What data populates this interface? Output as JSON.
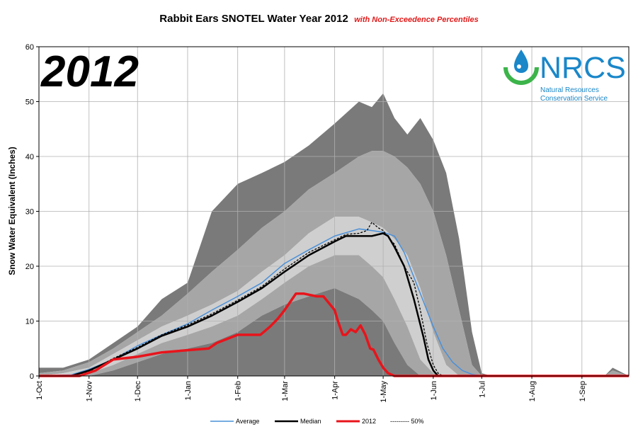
{
  "title": "Rabbit Ears SNOTEL Water Year 2012",
  "subtitle": "with Non-Exceedence Percentiles",
  "watermark_year": "2012",
  "logo": {
    "name": "NRCS",
    "line1": "Natural Resources",
    "line2": "Conservation Service",
    "colors": {
      "text": "#1a87c9",
      "drop": "#1a87c9",
      "arc": "#3cb44a"
    }
  },
  "colors": {
    "band_outer": "#7a7a7a",
    "band_mid": "#a6a6a6",
    "band_inner": "#cfcfcf",
    "average": "#4a90d9",
    "median": "#000000",
    "year2012": "#e8141b",
    "grid": "#b0b0b0"
  },
  "chart_data": {
    "type": "area",
    "ylabel": "Snow Water Equivalent (Inches)",
    "xlabel": "",
    "ylim": [
      0,
      60
    ],
    "yticks": [
      "0",
      "10",
      "20",
      "30",
      "40",
      "50",
      "60"
    ],
    "x_ticks": [
      "1-Oct",
      "1-Nov",
      "1-Dec",
      "1-Jan",
      "1-Feb",
      "1-Mar",
      "1-Apr",
      "1-May",
      "1-Jun",
      "1-Jul",
      "1-Aug",
      "1-Sep"
    ],
    "x_tick_days": [
      0,
      31,
      61,
      92,
      123,
      152,
      183,
      213,
      244,
      274,
      305,
      336
    ],
    "x_max_day": 365,
    "grid": true,
    "legend_position": "bottom",
    "legend": [
      "Average",
      "Median",
      "2012",
      "--------- 50%"
    ],
    "bands": {
      "days": [
        0,
        15,
        31,
        46,
        61,
        76,
        92,
        107,
        123,
        138,
        152,
        167,
        183,
        198,
        206,
        213,
        220,
        228,
        236,
        244,
        252,
        260,
        268,
        274,
        280,
        305,
        336,
        350,
        355,
        365
      ],
      "p100": [
        1.5,
        1.5,
        3,
        6,
        9,
        14,
        17,
        30,
        35,
        37,
        39,
        42,
        46,
        50,
        49,
        51.5,
        47,
        44,
        47,
        43,
        37,
        25,
        8,
        0.5,
        0,
        0,
        0,
        0,
        1.5,
        0
      ],
      "p90": [
        0.5,
        1,
        2.5,
        5,
        8,
        11,
        15,
        19,
        23,
        27,
        30,
        34,
        37,
        40,
        41,
        41,
        40,
        38,
        35,
        30,
        22,
        12,
        2,
        0,
        0,
        0,
        0,
        0,
        1,
        0
      ],
      "p70": [
        0,
        0.5,
        1.5,
        4,
        6.5,
        9,
        11,
        13,
        15.5,
        19,
        22,
        26,
        29,
        29,
        28,
        27,
        25,
        22,
        16,
        8,
        2,
        0,
        0,
        0,
        0,
        0,
        0,
        0,
        0,
        0
      ],
      "p30": [
        0,
        0,
        0.5,
        2,
        4,
        6,
        7.5,
        9,
        11,
        14,
        17,
        20,
        22,
        22,
        20,
        18,
        14,
        9,
        3,
        0.5,
        0,
        0,
        0,
        0,
        0,
        0,
        0,
        0,
        0,
        0
      ],
      "p10": [
        0,
        0,
        0,
        1,
        2.5,
        4,
        5,
        6,
        8,
        11,
        13,
        14.5,
        16,
        14,
        12,
        10,
        6,
        2,
        0,
        0,
        0,
        0,
        0,
        0,
        0,
        0,
        0,
        0,
        0,
        0
      ],
      "p0": [
        0,
        0,
        0,
        0,
        0,
        0,
        0,
        0,
        0,
        0,
        0,
        0,
        0,
        0,
        0,
        0,
        0,
        0,
        0,
        0,
        0,
        0,
        0,
        0,
        0,
        0,
        0,
        0,
        0,
        0
      ]
    },
    "series": [
      {
        "name": "Average",
        "days": [
          0,
          20,
          31,
          46,
          61,
          76,
          92,
          107,
          123,
          138,
          152,
          167,
          183,
          198,
          206,
          213,
          220,
          226,
          232,
          238,
          244,
          250,
          256,
          262,
          268,
          274,
          280,
          365
        ],
        "values": [
          0,
          0.2,
          1.2,
          3,
          5.5,
          7.5,
          9.5,
          12,
          14.5,
          17,
          20.5,
          23,
          25.5,
          26.8,
          26.5,
          26.2,
          25.5,
          22.5,
          18,
          13.5,
          9,
          5,
          2.5,
          1,
          0.3,
          0,
          0,
          0
        ]
      },
      {
        "name": "Median",
        "days": [
          0,
          20,
          31,
          46,
          61,
          76,
          92,
          107,
          123,
          138,
          152,
          167,
          183,
          190,
          198,
          206,
          213,
          216,
          220,
          226,
          232,
          238,
          241,
          244,
          247,
          250,
          365
        ],
        "values": [
          0,
          0,
          1,
          3,
          5,
          7.3,
          9,
          11,
          13.5,
          16,
          19,
          22,
          24.5,
          25.5,
          25.5,
          25.5,
          26,
          25.5,
          23.5,
          20,
          14,
          7,
          3,
          1,
          0,
          0,
          0
        ]
      },
      {
        "name": "2012",
        "days": [
          0,
          25,
          30,
          35,
          46,
          61,
          76,
          92,
          105,
          110,
          123,
          127,
          137,
          143,
          148,
          152,
          159,
          164,
          172,
          176,
          183,
          185,
          188,
          190,
          193,
          196,
          199,
          202,
          205,
          207,
          210,
          213,
          216,
          220,
          225,
          365
        ],
        "values": [
          0,
          0,
          0.5,
          1,
          3,
          3.5,
          4.3,
          4.7,
          5,
          6,
          7.5,
          7.5,
          7.5,
          9,
          10.5,
          12,
          15,
          15,
          14.5,
          14.5,
          12,
          10,
          7.5,
          7.5,
          8.5,
          8,
          9.2,
          7.5,
          5,
          4.8,
          3,
          1.5,
          0.5,
          0,
          0,
          0
        ]
      },
      {
        "name": "50%",
        "days": [
          0,
          20,
          31,
          46,
          61,
          76,
          92,
          107,
          123,
          138,
          152,
          167,
          183,
          190,
          198,
          203,
          206,
          210,
          213,
          217,
          220,
          226,
          232,
          236,
          240,
          244,
          247,
          250,
          365
        ],
        "values": [
          0,
          0,
          0.8,
          3.2,
          5.2,
          7.5,
          9.3,
          11.3,
          13.8,
          16.3,
          19.5,
          22.5,
          24.8,
          25.8,
          26,
          26.5,
          28,
          27,
          26.5,
          25,
          24,
          20,
          17,
          12,
          6,
          2,
          0.5,
          0,
          0
        ]
      }
    ]
  }
}
